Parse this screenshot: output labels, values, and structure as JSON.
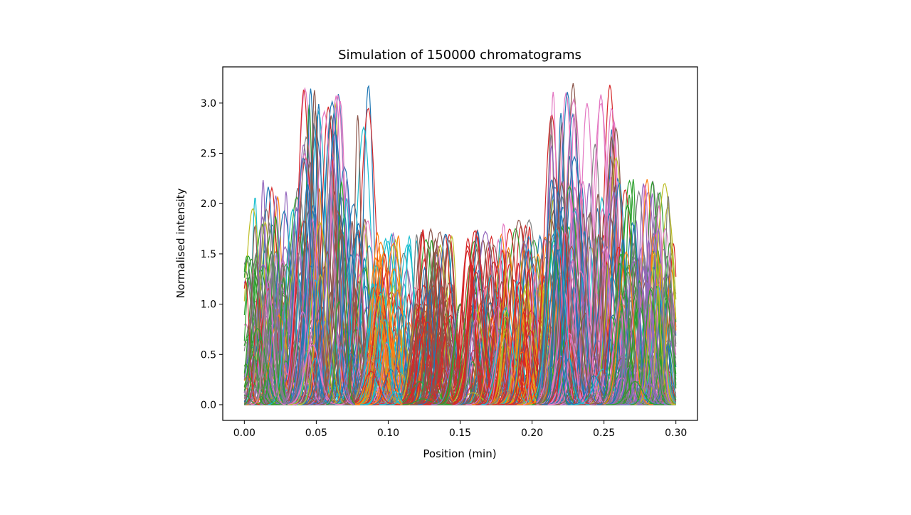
{
  "chart_data": {
    "type": "line",
    "title": "Simulation of 150000 chromatograms",
    "xlabel": "Position (min)",
    "ylabel": "Normalised intensity",
    "xlim": [
      -0.015,
      0.315
    ],
    "ylim": [
      -0.156,
      3.36
    ],
    "xticks": [
      "0.00",
      "0.05",
      "0.10",
      "0.15",
      "0.20",
      "0.25",
      "0.30"
    ],
    "yticks": [
      "0.0",
      "0.5",
      "1.0",
      "1.5",
      "2.0",
      "2.5",
      "3.0"
    ],
    "grid": false,
    "legend": "none",
    "series_count": 150000,
    "palette": [
      "#1f77b4",
      "#ff7f0e",
      "#2ca02c",
      "#d62728",
      "#9467bd",
      "#8c564b",
      "#e377c2",
      "#7f7f7f",
      "#bcbd22",
      "#17becf"
    ],
    "peak_regions": [
      {
        "x_range": [
          0.0,
          0.04
        ],
        "max_intensity": 2.25,
        "dominant": [
          "#9467bd",
          "#7f7f7f",
          "#2ca02c"
        ]
      },
      {
        "x_range": [
          0.04,
          0.087
        ],
        "max_intensity": 3.18,
        "dominant": [
          "#1f77b4",
          "#e377c2",
          "#8c564b"
        ]
      },
      {
        "x_range": [
          0.087,
          0.12
        ],
        "max_intensity": 1.72,
        "dominant": [
          "#d62728",
          "#ff7f0e",
          "#17becf"
        ]
      },
      {
        "x_range": [
          0.12,
          0.145
        ],
        "max_intensity": 1.75,
        "dominant": [
          "#d62728",
          "#8c564b"
        ]
      },
      {
        "x_range": [
          0.145,
          0.155
        ],
        "max_intensity": 1.0,
        "dominant": [
          "#1f77b4",
          "#9467bd",
          "#2ca02c"
        ]
      },
      {
        "x_range": [
          0.155,
          0.18
        ],
        "max_intensity": 1.75,
        "dominant": [
          "#d62728",
          "#8c564b"
        ]
      },
      {
        "x_range": [
          0.18,
          0.213
        ],
        "max_intensity": 1.84,
        "dominant": [
          "#d62728",
          "#ff7f0e",
          "#bcbd22"
        ]
      },
      {
        "x_range": [
          0.213,
          0.26
        ],
        "max_intensity": 3.2,
        "dominant": [
          "#1f77b4",
          "#e377c2",
          "#8c564b"
        ]
      },
      {
        "x_range": [
          0.26,
          0.3
        ],
        "max_intensity": 2.25,
        "dominant": [
          "#9467bd",
          "#7f7f7f",
          "#2ca02c"
        ]
      }
    ]
  }
}
